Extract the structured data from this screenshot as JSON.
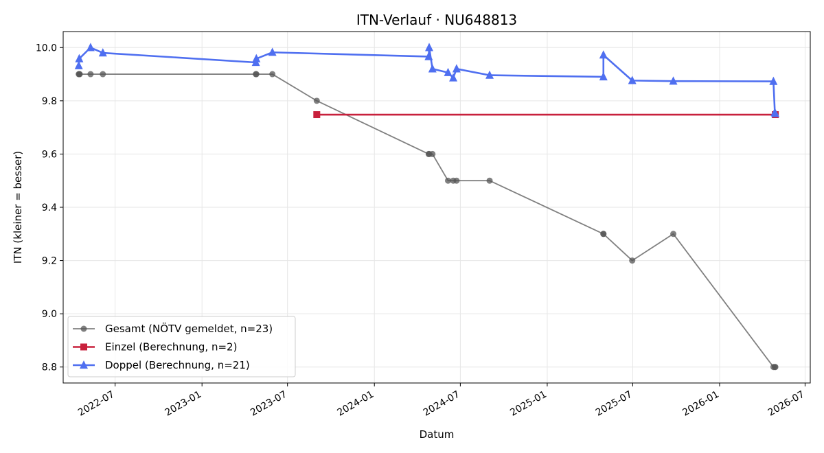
{
  "chart_data": {
    "type": "line",
    "title": "ITN-Verlauf · NU648813",
    "xlabel": "Datum",
    "ylabel": "ITN  (kleiner = besser)",
    "x_axis_type": "date",
    "xlim": [
      "2022-03-13",
      "2026-07-12"
    ],
    "ylim": [
      8.74,
      10.06
    ],
    "x_ticks": [
      "2022-07-01",
      "2023-01-01",
      "2023-07-01",
      "2024-01-01",
      "2024-07-01",
      "2025-01-01",
      "2025-07-01",
      "2026-01-01",
      "2026-07-01"
    ],
    "x_tick_labels": [
      "2022-07",
      "2023-01",
      "2023-07",
      "2024-01",
      "2024-07",
      "2025-01",
      "2025-07",
      "2026-01",
      "2026-07"
    ],
    "y_ticks": [
      8.8,
      9.0,
      9.2,
      9.4,
      9.6,
      9.8,
      10.0
    ],
    "y_tick_labels": [
      "8.8",
      "9.0",
      "9.2",
      "9.4",
      "9.6",
      "9.8",
      "10.0"
    ],
    "grid": true,
    "legend_position": "lower-left",
    "series": [
      {
        "name": "Gesamt (NÖTV gemeldet, n=23)",
        "color": "#555555",
        "marker": "circle",
        "x": [
          "2022-04-15",
          "2022-04-16",
          "2022-04-17",
          "2022-05-10",
          "2022-06-05",
          "2023-04-25",
          "2023-04-26",
          "2023-05-30",
          "2023-09-01",
          "2024-04-25",
          "2024-04-26",
          "2024-05-03",
          "2024-06-05",
          "2024-06-16",
          "2024-06-23",
          "2024-09-01",
          "2025-04-30",
          "2025-04-30",
          "2025-06-30",
          "2025-09-25",
          "2026-04-25",
          "2026-04-28",
          "2026-04-29"
        ],
        "y": [
          9.9,
          9.9,
          9.9,
          9.9,
          9.9,
          9.9,
          9.9,
          9.9,
          9.8,
          9.6,
          9.6,
          9.6,
          9.5,
          9.5,
          9.5,
          9.5,
          9.3,
          9.3,
          9.2,
          9.3,
          8.8,
          8.8,
          8.8
        ]
      },
      {
        "name": "Einzel (Berechnung, n=2)",
        "color": "#c8203c",
        "marker": "square",
        "x": [
          "2023-09-01",
          "2026-04-29"
        ],
        "y": [
          9.748,
          9.748
        ]
      },
      {
        "name": "Doppel (Berechnung, n=21)",
        "color": "#4f6ff0",
        "marker": "triangle",
        "x": [
          "2022-04-15",
          "2022-04-16",
          "2022-05-10",
          "2022-06-05",
          "2023-04-25",
          "2023-04-26",
          "2023-05-30",
          "2024-04-25",
          "2024-04-26",
          "2024-05-03",
          "2024-06-05",
          "2024-06-16",
          "2024-06-23",
          "2024-09-01",
          "2025-04-30",
          "2025-04-30",
          "2025-06-30",
          "2025-09-25",
          "2026-04-25",
          "2026-04-28",
          "2026-04-29"
        ],
        "y": [
          9.932,
          9.958,
          10.0,
          9.98,
          9.944,
          9.958,
          9.982,
          9.966,
          10.0,
          9.92,
          9.906,
          9.886,
          9.92,
          9.896,
          9.89,
          9.972,
          9.876,
          9.874,
          9.873,
          9.756,
          9.752
        ]
      }
    ]
  }
}
